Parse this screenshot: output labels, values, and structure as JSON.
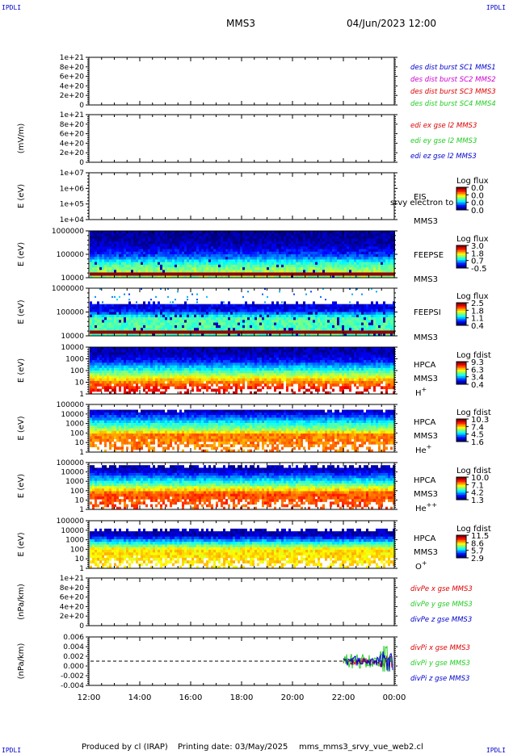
{
  "corners": {
    "tl": "IPDLI",
    "tr": "IPDLI",
    "bl": "IPDLI",
    "br": "IPDLI"
  },
  "header": {
    "spacecraft": "MMS3",
    "date": "04/Jun/2023 12:00"
  },
  "footer": {
    "produced": "Produced by cl (IRAP)",
    "printing": "Printing date: 03/May/2025",
    "script": "mms_mms3_srvy_vue_web2.cl"
  },
  "colors": {
    "c1": "#0000cc",
    "c2": "#cc00cc",
    "c3": "#dd0000",
    "c4": "#22cc22",
    "dash": "#000000"
  },
  "chart_data": [
    {
      "type": "line",
      "title": "",
      "ylabel": "",
      "ylim": [
        0,
        1e+21
      ],
      "yticks": [
        "1e+21",
        "8e+20",
        "6e+20",
        "4e+20",
        "2e+20",
        "0"
      ],
      "series": [
        {
          "name": "des dist burst SC1 MMS1",
          "color": "#0000cc",
          "values": []
        },
        {
          "name": "des dist burst SC2 MMS2",
          "color": "#cc00cc",
          "values": []
        },
        {
          "name": "des dist burst SC3 MMS3",
          "color": "#dd0000",
          "values": []
        },
        {
          "name": "des dist burst SC4 MMS4",
          "color": "#22cc22",
          "values": []
        }
      ]
    },
    {
      "type": "line",
      "title": "",
      "ylabel": "(mV/m)",
      "ylim": [
        0,
        1e+21
      ],
      "yticks": [
        "1e+21",
        "8e+20",
        "6e+20",
        "4e+20",
        "2e+20",
        "0"
      ],
      "series": [
        {
          "name": "edi ex gse l2 MMS3",
          "color": "#dd0000",
          "values": []
        },
        {
          "name": "edi ey gse l2 MMS3",
          "color": "#22cc22",
          "values": []
        },
        {
          "name": "edi ez gse l2 MMS3",
          "color": "#0000cc",
          "values": []
        }
      ]
    },
    {
      "type": "heatmap",
      "ylabel": "E (eV)",
      "ylim": [
        10000.0,
        10000000.0
      ],
      "log": true,
      "yticks": [
        "1e+07",
        "1e+06",
        "1e+05",
        "1e+04"
      ],
      "right_labels": [
        "EIS",
        "MMS3"
      ],
      "overlay_label": "srvy electron to",
      "cb_title": "Log flux",
      "cb_ticks": [
        "0.0",
        "0.0",
        "0.0",
        "0.0"
      ],
      "empty": true
    },
    {
      "type": "heatmap",
      "ylabel": "E (eV)",
      "ylim": [
        10000.0,
        1000000.0
      ],
      "log": true,
      "yticks": [
        "1000000",
        "100000",
        "10000"
      ],
      "right_labels": [
        "FEEPSE",
        "MMS3"
      ],
      "cb_title": "Log flux",
      "cb_ticks": [
        "3.0",
        "1.8",
        "0.7",
        "-0.5"
      ],
      "bands": [
        [
          0.17,
          0.02
        ],
        [
          0.3,
          0.06
        ],
        [
          0.42,
          0.12
        ],
        [
          0.55,
          0.22
        ],
        [
          0.66,
          0.38
        ],
        [
          0.82,
          0.52
        ]
      ],
      "bottom_band": [
        0.06,
        0.98
      ],
      "speckle": 0.03
    },
    {
      "type": "heatmap",
      "ylabel": "E (eV)",
      "ylim": [
        10000.0,
        1000000.0
      ],
      "log": true,
      "yticks": [
        "1000000",
        "100000",
        "10000"
      ],
      "right_labels": [
        "FEEPSI",
        "MMS3"
      ],
      "cb_title": "Log flux",
      "cb_ticks": [
        "2.5",
        "1.8",
        "1.1",
        "0.4"
      ],
      "bands": [
        [
          0.45,
          0.1
        ],
        [
          0.55,
          0.3
        ],
        [
          0.62,
          0.45
        ]
      ],
      "bottom_band": [
        0.06,
        0.98
      ],
      "speckle": 0.08,
      "sparse_top": true
    },
    {
      "type": "heatmap",
      "ylabel": "E (eV)",
      "ylim": [
        1,
        10000.0
      ],
      "log": true,
      "yticks": [
        "10000",
        "1000",
        "100",
        "10",
        "1"
      ],
      "right_labels": [
        "HPCA",
        "MMS3",
        "H+"
      ],
      "cb_title": "Log fdist",
      "cb_ticks": [
        "9.3",
        "6.3",
        "3.4",
        "0.4"
      ],
      "bands": [
        [
          0.15,
          0.05
        ],
        [
          0.3,
          0.15
        ],
        [
          0.45,
          0.35
        ],
        [
          0.6,
          0.55
        ],
        [
          0.75,
          0.75
        ],
        [
          1.0,
          0.95
        ]
      ],
      "speckle_bottom": true
    },
    {
      "type": "heatmap",
      "ylabel": "E (eV)",
      "ylim": [
        1,
        100000.0
      ],
      "log": true,
      "yticks": [
        "100000",
        "10000",
        "1000",
        "100",
        "10",
        "1"
      ],
      "right_labels": [
        "HPCA",
        "MMS3",
        "He+"
      ],
      "cb_title": "Log fdist",
      "cb_ticks": [
        "10.3",
        "7.4",
        "4.5",
        "1.6"
      ],
      "bands": [
        [
          0.14,
          0.05
        ],
        [
          0.26,
          0.2
        ],
        [
          0.4,
          0.4
        ],
        [
          0.55,
          0.55
        ],
        [
          0.62,
          0.75
        ]
      ],
      "speckle_bottom": true,
      "top_empty": 0.12
    },
    {
      "type": "heatmap",
      "ylabel": "E (eV)",
      "ylim": [
        1,
        100000.0
      ],
      "log": true,
      "yticks": [
        "100000",
        "10000",
        "1000",
        "100",
        "10",
        "1"
      ],
      "right_labels": [
        "HPCA",
        "MMS3",
        "He++"
      ],
      "cb_title": "Log fdist",
      "cb_ticks": [
        "10.0",
        "7.1",
        "4.2",
        "1.3"
      ],
      "bands": [
        [
          0.16,
          0.05
        ],
        [
          0.28,
          0.2
        ],
        [
          0.42,
          0.4
        ],
        [
          0.55,
          0.6
        ],
        [
          0.66,
          0.8
        ]
      ],
      "speckle_bottom": true,
      "top_empty": 0.08
    },
    {
      "type": "heatmap",
      "ylabel": "E (eV)",
      "ylim": [
        1,
        100000.0
      ],
      "log": true,
      "yticks": [
        "100000",
        "10000",
        "1000",
        "100",
        "10",
        "1"
      ],
      "right_labels": [
        "HPCA",
        "MMS3",
        "O+"
      ],
      "cb_title": "Log fdist",
      "cb_ticks": [
        "11.5",
        "8.6",
        "5.7",
        "2.9"
      ],
      "bands": [
        [
          0.3,
          0.05
        ],
        [
          0.4,
          0.25
        ],
        [
          0.5,
          0.45
        ],
        [
          0.6,
          0.65
        ]
      ],
      "speckle_bottom": true,
      "top_empty": 0.2
    },
    {
      "type": "line",
      "title": "",
      "ylabel": "(nPa/km)",
      "ylim": [
        0,
        1e+21
      ],
      "yticks": [
        "1e+21",
        "8e+20",
        "6e+20",
        "4e+20",
        "2e+20",
        "0"
      ],
      "series": [
        {
          "name": "divPe x gse MMS3",
          "color": "#dd0000",
          "values": []
        },
        {
          "name": "divPe y gse MMS3",
          "color": "#22cc22",
          "values": []
        },
        {
          "name": "divPe z gse MMS3",
          "color": "#0000cc",
          "values": []
        }
      ]
    },
    {
      "type": "line",
      "title": "",
      "ylabel": "(nPa/km)",
      "ylim": [
        -0.006,
        0.006
      ],
      "yticks": [
        "0.006",
        "0.004",
        "0.002",
        "0.000",
        "-0.002",
        "-0.004"
      ],
      "ytick_values": [
        0.006,
        0.004,
        0.002,
        0.0,
        -0.002,
        -0.004
      ],
      "x_start_hour": 22.0,
      "series": [
        {
          "name": "divPi x gse MMS3",
          "color": "#dd0000",
          "amplitude": 0.0008
        },
        {
          "name": "divPi y gse MMS3",
          "color": "#22cc22",
          "amplitude": 0.0018
        },
        {
          "name": "divPi z gse MMS3",
          "color": "#0000cc",
          "amplitude": 0.0012
        }
      ]
    }
  ],
  "xaxis": {
    "labels": [
      "12:00",
      "14:00",
      "16:00",
      "18:00",
      "20:00",
      "22:00",
      "00:00"
    ],
    "range_hours": [
      12,
      24
    ]
  }
}
